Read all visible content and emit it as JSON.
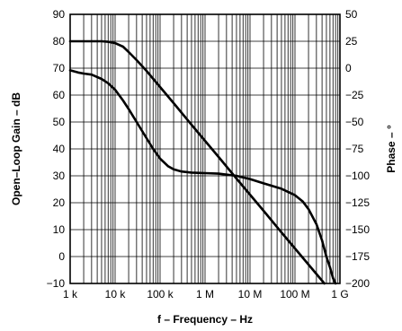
{
  "chart_data": {
    "type": "line",
    "xlabel": "f – Frequency – Hz",
    "ylabel_left": "Open–Loop Gain – dB",
    "ylabel_right": "Phase – °",
    "x_scale": "log",
    "xlim": [
      1000,
      1000000000
    ],
    "x_ticks": [
      {
        "value": 1000,
        "label": "1 k"
      },
      {
        "value": 10000,
        "label": "10 k"
      },
      {
        "value": 100000,
        "label": "100 k"
      },
      {
        "value": 1000000,
        "label": "1 M"
      },
      {
        "value": 10000000,
        "label": "10 M"
      },
      {
        "value": 100000000,
        "label": "100 M"
      },
      {
        "value": 1000000000,
        "label": "1 G"
      }
    ],
    "ylim_left": [
      -10,
      90
    ],
    "y_ticks_left": [
      {
        "value": 90,
        "label": "90"
      },
      {
        "value": 80,
        "label": "80"
      },
      {
        "value": 70,
        "label": "70"
      },
      {
        "value": 60,
        "label": "60"
      },
      {
        "value": 50,
        "label": "50"
      },
      {
        "value": 40,
        "label": "40"
      },
      {
        "value": 30,
        "label": "30"
      },
      {
        "value": 20,
        "label": "20"
      },
      {
        "value": 10,
        "label": "10"
      },
      {
        "value": 0,
        "label": "0"
      },
      {
        "value": -10,
        "label": "−10"
      }
    ],
    "ylim_right": [
      -200,
      50
    ],
    "y_ticks_right": [
      {
        "value": 50,
        "label": "50"
      },
      {
        "value": 25,
        "label": "25"
      },
      {
        "value": 0,
        "label": "0"
      },
      {
        "value": -25,
        "label": "−25"
      },
      {
        "value": -50,
        "label": "−50"
      },
      {
        "value": -75,
        "label": "−75"
      },
      {
        "value": -100,
        "label": "−100"
      },
      {
        "value": -125,
        "label": "−125"
      },
      {
        "value": -150,
        "label": "−150"
      },
      {
        "value": -175,
        "label": "−175"
      },
      {
        "value": -200,
        "label": "−200"
      }
    ],
    "grid": {
      "x_minor": true,
      "y_major": true
    },
    "series": [
      {
        "axis": "left",
        "x": [
          1000,
          1500,
          2000,
          3000,
          5000,
          7000,
          10000,
          15000,
          20000,
          30000,
          50000,
          100000,
          200000,
          500000,
          1000000,
          2000000,
          5000000,
          10000000,
          20000000,
          50000000,
          100000000,
          200000000,
          300000000,
          450000000
        ],
        "y": [
          80,
          80,
          80,
          80,
          80,
          79.8,
          79.3,
          78,
          76,
          73,
          69,
          63,
          57,
          49,
          43,
          37,
          29,
          23,
          17,
          9,
          3,
          -3,
          -6.5,
          -10
        ]
      },
      {
        "axis": "right",
        "x": [
          1000,
          1500,
          2000,
          3000,
          5000,
          7000,
          10000,
          15000,
          20000,
          30000,
          50000,
          70000,
          100000,
          150000,
          200000,
          300000,
          500000,
          1000000,
          2000000,
          5000000,
          10000000,
          20000000,
          50000000,
          100000000,
          150000000,
          200000000,
          300000000,
          400000000,
          500000000,
          600000000,
          700000000,
          800000000
        ],
        "y": [
          -2,
          -4,
          -5,
          -6,
          -10,
          -14,
          -20,
          -30,
          -38,
          -50,
          -65,
          -75,
          -84,
          -91,
          -94,
          -96,
          -97,
          -97.5,
          -98,
          -100,
          -103,
          -107,
          -112,
          -118,
          -124,
          -131,
          -145,
          -160,
          -175,
          -185,
          -195,
          -200
        ]
      }
    ]
  }
}
